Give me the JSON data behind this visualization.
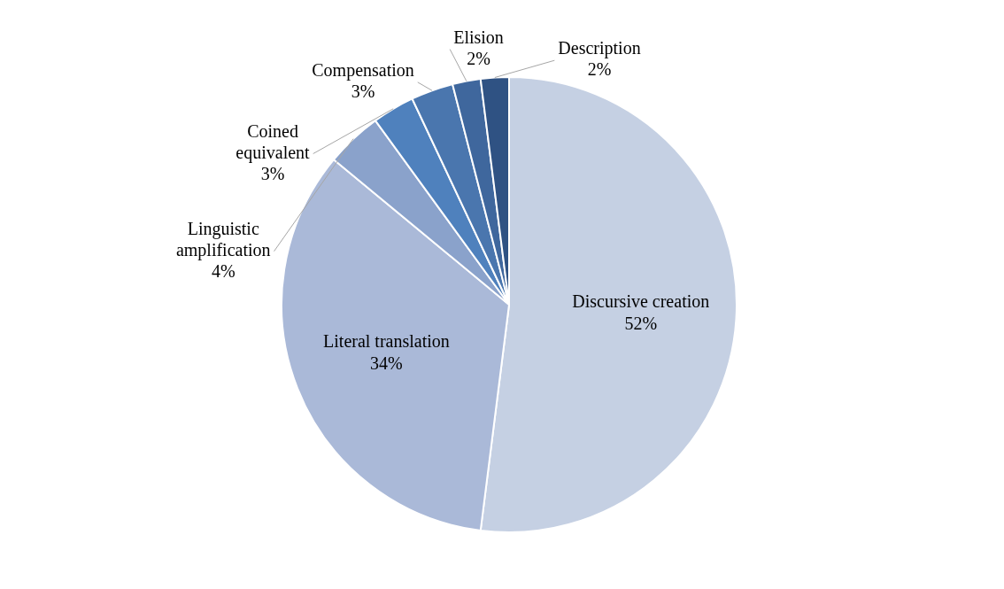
{
  "chart_data": {
    "type": "pie",
    "categories": [
      "Discursive creation",
      "Literal translation",
      "Linguistic amplification",
      "Coined equivalent",
      "Compensation",
      "Elision",
      "Description"
    ],
    "values": [
      52,
      34,
      4,
      3,
      3,
      2,
      2
    ],
    "value_labels": [
      "52%",
      "34%",
      "4%",
      "3%",
      "3%",
      "2%",
      "2%"
    ],
    "colors": [
      "#c5d0e3",
      "#aab9d8",
      "#8aa2cb",
      "#4f81bd",
      "#4a76ae",
      "#3f679d",
      "#2f5283"
    ],
    "legend": false
  }
}
